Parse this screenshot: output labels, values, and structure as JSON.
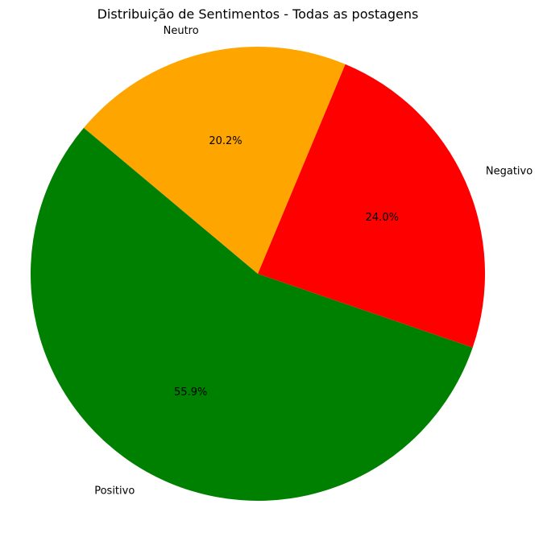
{
  "chart_data": {
    "type": "pie",
    "title": "Distribuição de Sentimentos - Todas as postagens",
    "slices": [
      {
        "label": "Positivo",
        "value": 55.9,
        "pct_label": "55.9%",
        "color": "#008000"
      },
      {
        "label": "Negativo",
        "value": 24.0,
        "pct_label": "24.0%",
        "color": "#ff0000"
      },
      {
        "label": "Neutro",
        "value": 20.2,
        "pct_label": "20.2%",
        "color": "#ffa500"
      }
    ],
    "start_angle_deg": 140,
    "direction": "counterclockwise"
  }
}
